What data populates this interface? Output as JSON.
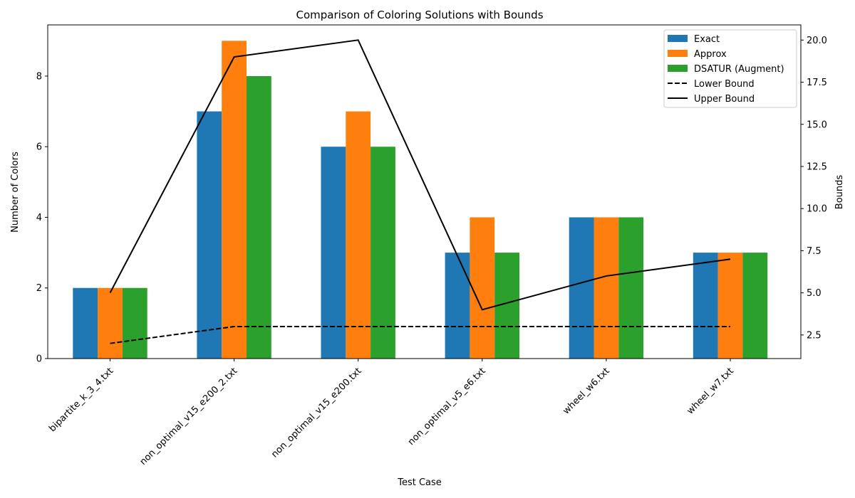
{
  "chart_data": {
    "type": "bar",
    "title": "Comparison of Coloring Solutions with Bounds",
    "xlabel": "Test Case",
    "ylabel": "Number of Colors",
    "y2label": "Bounds",
    "categories": [
      "bipartite_k_3_4.txt",
      "non_optimal_v15_e200_2.txt",
      "non_optimal_v15_e200.txt",
      "non_optimal_v5_e6.txt",
      "wheel_w6.txt",
      "wheel_w7.txt"
    ],
    "ylim": [
      0,
      9.45
    ],
    "y2lim": [
      1.1,
      20.9
    ],
    "yticks": [
      0,
      2,
      4,
      6,
      8
    ],
    "y2ticks": [
      2.5,
      5.0,
      7.5,
      10.0,
      12.5,
      15.0,
      17.5,
      20.0
    ],
    "series": [
      {
        "name": "Exact",
        "color": "#1f77b4",
        "values": [
          2,
          7,
          6,
          3,
          4,
          3
        ]
      },
      {
        "name": "Approx",
        "color": "#ff7f0e",
        "values": [
          2,
          9,
          7,
          4,
          4,
          3
        ]
      },
      {
        "name": "DSATUR (Augment)",
        "color": "#2ca02c",
        "values": [
          2,
          8,
          6,
          3,
          4,
          3
        ]
      }
    ],
    "lines": [
      {
        "name": "Lower Bound",
        "color": "#000000",
        "style": "dashed",
        "axis": "right",
        "values": [
          2,
          3,
          3,
          3,
          3,
          3
        ]
      },
      {
        "name": "Upper Bound",
        "color": "#000000",
        "style": "solid",
        "axis": "right",
        "values": [
          5,
          19,
          20,
          4,
          6,
          7
        ]
      }
    ],
    "legend_position": "top-right"
  }
}
